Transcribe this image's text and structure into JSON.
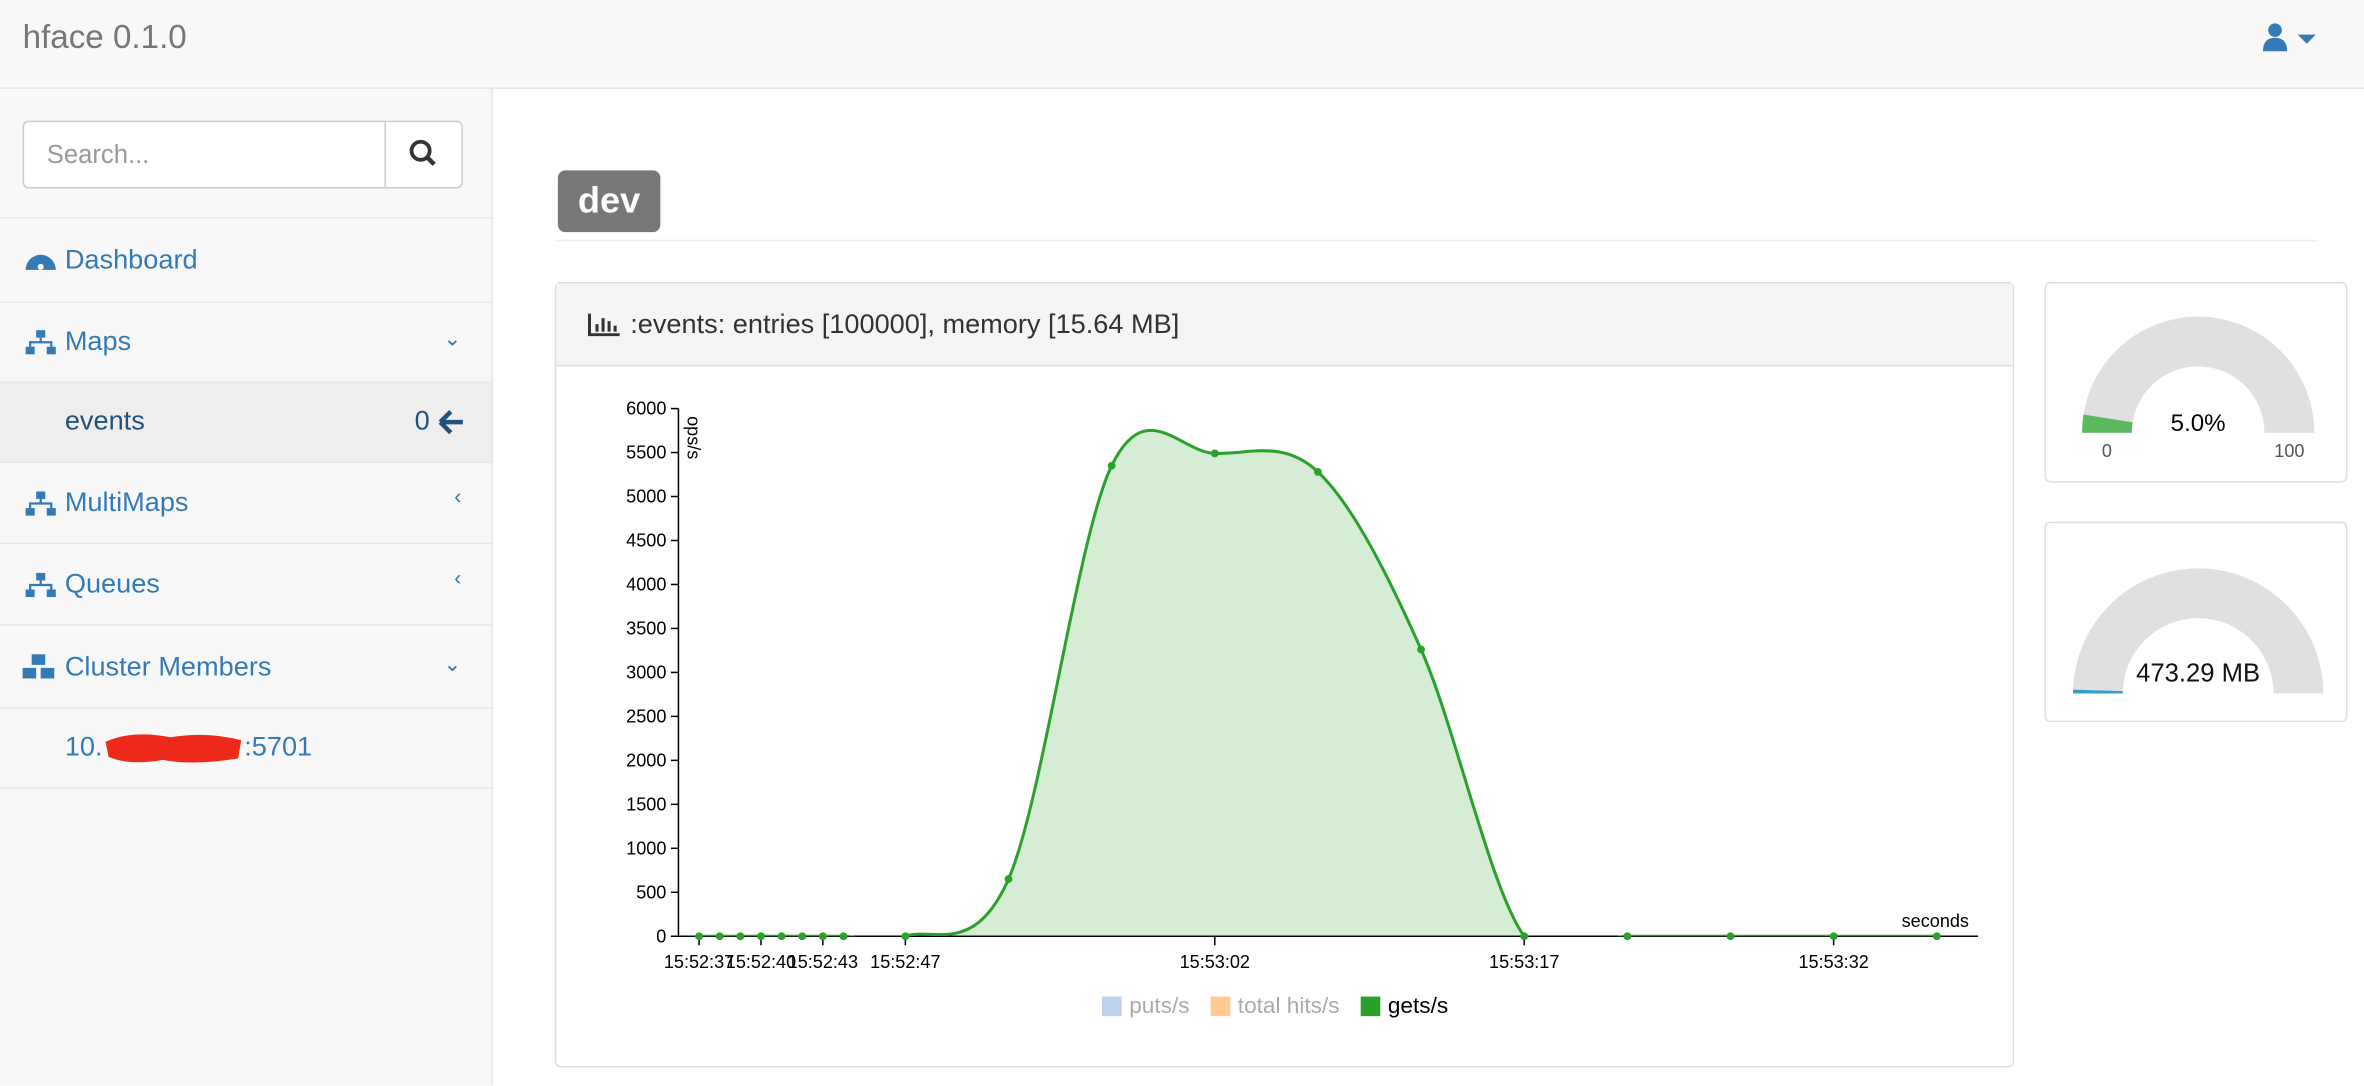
{
  "header": {
    "title": "hface 0.1.0"
  },
  "sidebar": {
    "search_placeholder": "Search...",
    "items": [
      {
        "label": "Dashboard"
      },
      {
        "label": "Maps",
        "children": [
          {
            "label": "events",
            "count": 0
          }
        ]
      },
      {
        "label": "MultiMaps"
      },
      {
        "label": "Queues"
      },
      {
        "label": "Cluster Members",
        "children": [
          {
            "label_prefix": "10.",
            "label_suffix": ":5701"
          }
        ]
      }
    ]
  },
  "badge": "dev",
  "panel": {
    "title": ":events: entries [100000], memory [15.64 MB]"
  },
  "chart_data": {
    "type": "area",
    "y_label": "ops/s",
    "x_label": "seconds",
    "x": [
      "15:52:37",
      "15:52:38",
      "15:52:39",
      "15:52:40",
      "15:52:41",
      "15:52:42",
      "15:52:43",
      "15:52:44",
      "15:52:47",
      "15:52:52",
      "15:52:57",
      "15:53:02",
      "15:53:07",
      "15:53:12",
      "15:53:17",
      "15:53:22",
      "15:53:27",
      "15:53:32",
      "15:53:37"
    ],
    "series": [
      {
        "name": "puts/s",
        "color": "#aec7e8",
        "hidden": true
      },
      {
        "name": "total hits/s",
        "color": "#ffbb78",
        "hidden": true
      },
      {
        "name": "gets/s",
        "color": "#2ca02c",
        "values": [
          0,
          0,
          0,
          0,
          0,
          0,
          0,
          0,
          0,
          650,
          5350,
          5490,
          5280,
          3260,
          0,
          0,
          0,
          0,
          0
        ]
      }
    ],
    "xlim": [
      "15:52:36",
      "15:53:39"
    ],
    "xticks": [
      "15:52:37",
      "15:52:40",
      "15:52:43",
      "15:52:47",
      "15:53:02",
      "15:53:17",
      "15:53:32"
    ],
    "ylim": [
      0,
      6000
    ],
    "yticks": [
      0,
      500,
      1000,
      1500,
      2000,
      2500,
      3000,
      3500,
      4000,
      4500,
      5000,
      5500,
      6000
    ],
    "legend": "bottom"
  },
  "gauges": [
    {
      "value": 5.0,
      "value_label": "5.0%",
      "min": 0,
      "max": 100
    },
    {
      "label": "473.29 MB"
    }
  ]
}
